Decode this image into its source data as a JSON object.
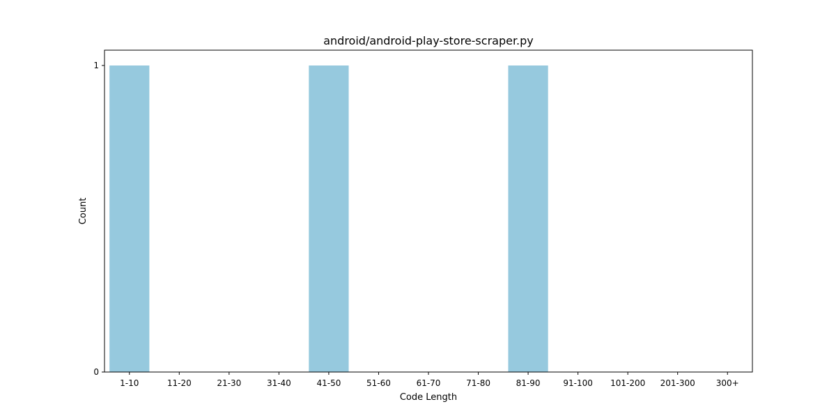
{
  "chart_data": {
    "type": "bar",
    "title": "android/android-play-store-scraper.py",
    "xlabel": "Code Length",
    "ylabel": "Count",
    "categories": [
      "1-10",
      "11-20",
      "21-30",
      "31-40",
      "41-50",
      "51-60",
      "61-70",
      "71-80",
      "81-90",
      "91-100",
      "101-200",
      "201-300",
      "300+"
    ],
    "values": [
      1,
      0,
      0,
      0,
      1,
      0,
      0,
      0,
      1,
      0,
      0,
      0,
      0
    ],
    "ylim": [
      0,
      1.05
    ],
    "yticks": [
      0,
      1
    ],
    "grid": false,
    "legend": "none",
    "bar_color": "#96c9de",
    "axis_color": "#000000"
  }
}
